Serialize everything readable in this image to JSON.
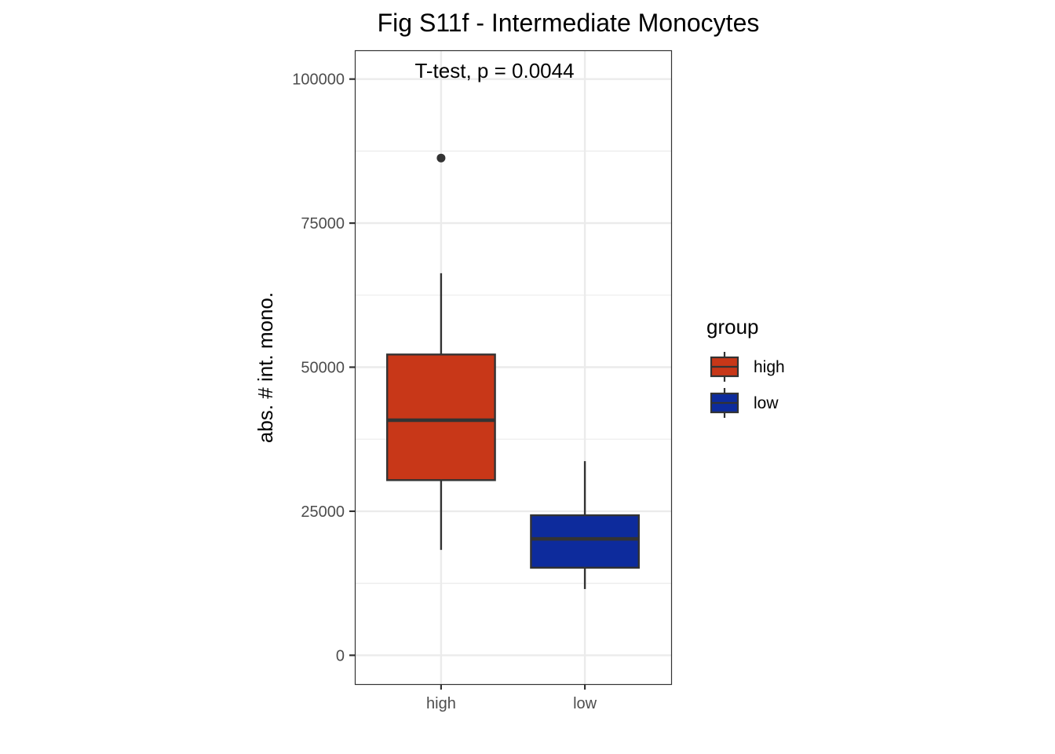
{
  "chart_data": {
    "type": "box",
    "title": "Fig S11f - Intermediate Monocytes",
    "annotation": "T-test, p = 0.0044",
    "xlabel": "",
    "ylabel": "abs. # int. mono.",
    "ylim": [
      -5000,
      105000
    ],
    "yticks": [
      0,
      25000,
      50000,
      75000,
      100000
    ],
    "ytick_labels": [
      "0",
      "25000",
      "50000",
      "75000",
      "100000"
    ],
    "categories": [
      "high",
      "low"
    ],
    "grid": true,
    "legend": {
      "title": "group",
      "position": "right",
      "entries": [
        "high",
        "low"
      ]
    },
    "series": [
      {
        "name": "high",
        "color": "#c83718",
        "whisker_low": 18300,
        "q1": 30400,
        "median": 40800,
        "q3": 52200,
        "whisker_high": 66300,
        "outliers": [
          86300
        ]
      },
      {
        "name": "low",
        "color": "#0d2b9c",
        "whisker_low": 11500,
        "q1": 15200,
        "median": 20200,
        "q3": 24300,
        "whisker_high": 33700,
        "outliers": []
      }
    ]
  }
}
